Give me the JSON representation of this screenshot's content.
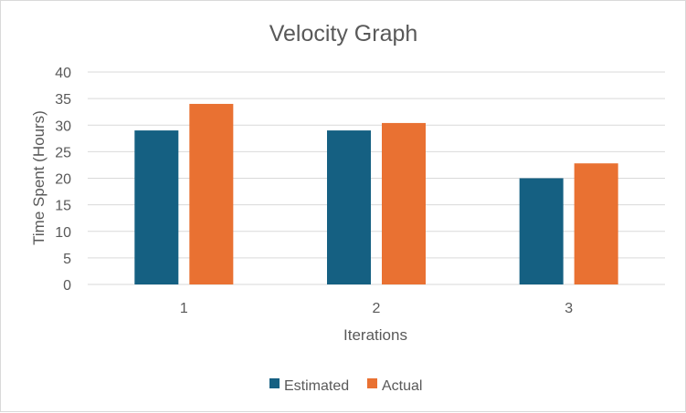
{
  "chart_data": {
    "type": "bar",
    "title": "Velocity Graph",
    "xlabel": "Iterations",
    "ylabel": "Time Spent (Hours)",
    "categories": [
      "1",
      "2",
      "3"
    ],
    "ylim": [
      0,
      40
    ],
    "yticks": [
      0,
      5,
      10,
      15,
      20,
      25,
      30,
      35,
      40
    ],
    "grid": true,
    "legend_position": "bottom",
    "series": [
      {
        "name": "Estimated",
        "color": "#156082",
        "values": [
          29,
          29,
          20
        ]
      },
      {
        "name": "Actual",
        "color": "#E97132",
        "values": [
          34,
          30.4,
          22.8
        ]
      }
    ]
  }
}
